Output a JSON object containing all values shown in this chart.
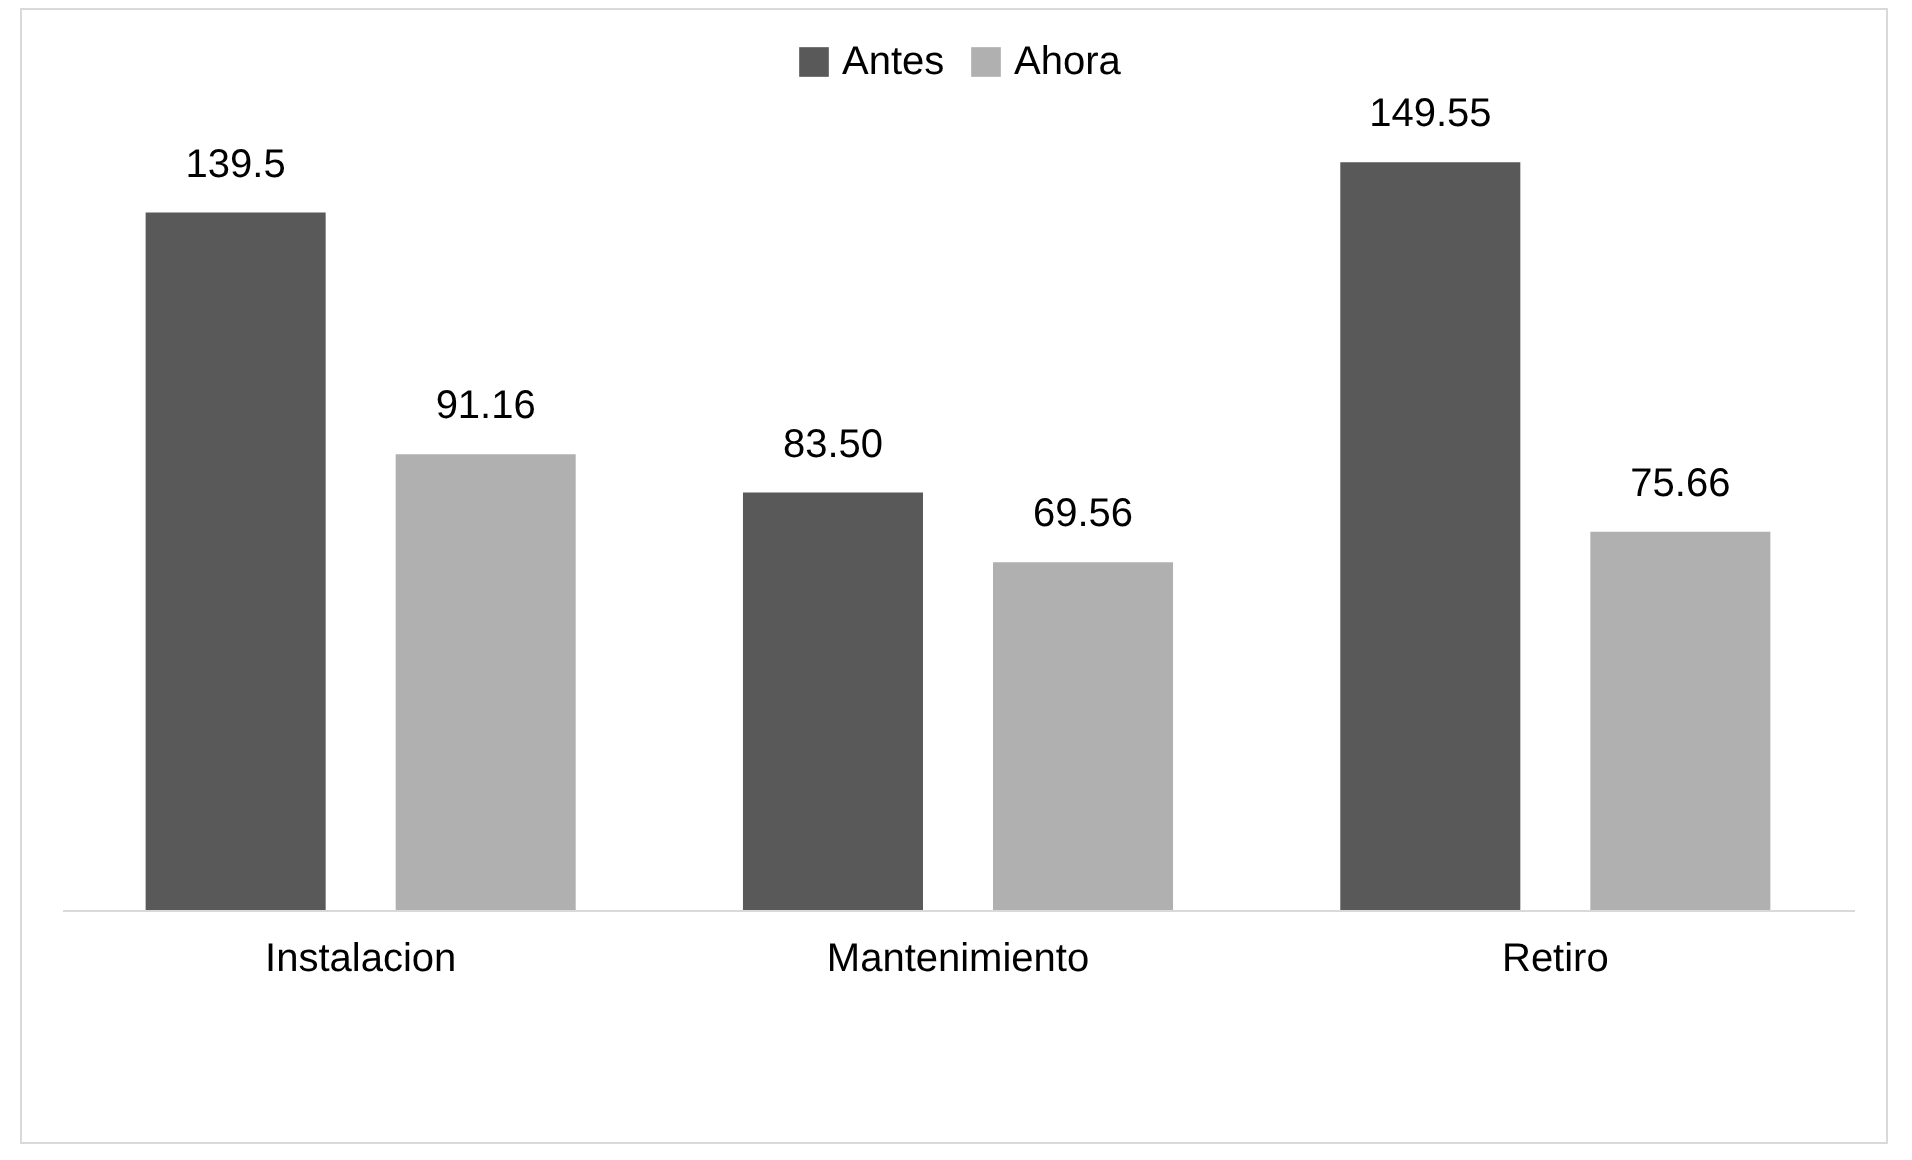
{
  "chart_data": {
    "type": "bar",
    "categories": [
      "Instalacion",
      "Mantenimiento",
      "Retiro"
    ],
    "series": [
      {
        "name": "Antes",
        "color": "#595959",
        "values": [
          139.5,
          83.5,
          149.55
        ],
        "value_labels": [
          "139.5",
          "83.50",
          "149.55"
        ]
      },
      {
        "name": "Ahora",
        "color": "#b0b0b0",
        "values": [
          91.16,
          69.56,
          75.66
        ],
        "value_labels": [
          "91.16",
          "69.56",
          "75.66"
        ]
      }
    ],
    "legend": "top",
    "grid": false
  }
}
